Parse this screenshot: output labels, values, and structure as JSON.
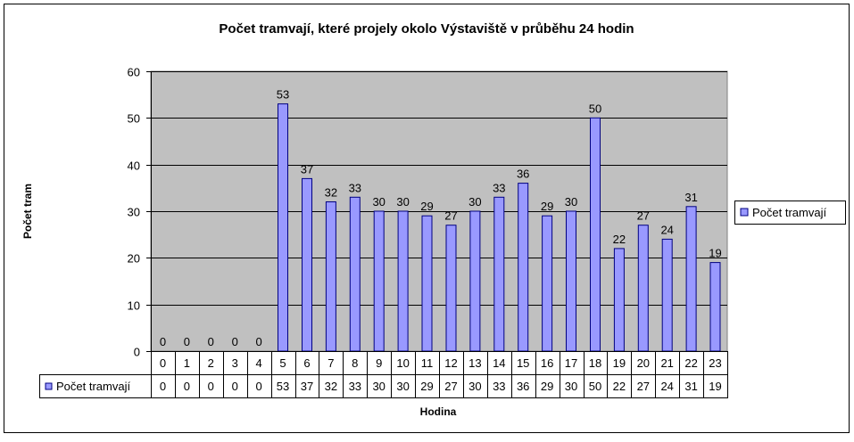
{
  "chart_data": {
    "type": "bar",
    "title": "Počet tramvají, které projely okolo Výstaviště v průběhu 24 hodin",
    "xlabel": "Hodina",
    "ylabel": "Počet tram",
    "categories": [
      "0",
      "1",
      "2",
      "3",
      "4",
      "5",
      "6",
      "7",
      "8",
      "9",
      "10",
      "11",
      "12",
      "13",
      "14",
      "15",
      "16",
      "17",
      "18",
      "19",
      "20",
      "21",
      "22",
      "23"
    ],
    "series": [
      {
        "name": "Počet tramvají",
        "values": [
          0,
          0,
          0,
          0,
          0,
          53,
          37,
          32,
          33,
          30,
          30,
          29,
          27,
          30,
          33,
          36,
          29,
          30,
          50,
          22,
          27,
          24,
          31,
          19
        ]
      }
    ],
    "ylim": [
      0,
      60
    ],
    "yticks": [
      0,
      10,
      20,
      30,
      40,
      50,
      60
    ],
    "grid": true,
    "legend": "right",
    "data_table": true,
    "colors": {
      "bar_fill": "#9999ff",
      "bar_stroke": "#000080",
      "plot_background": "#c0c0c0",
      "frame": "#000000"
    }
  }
}
